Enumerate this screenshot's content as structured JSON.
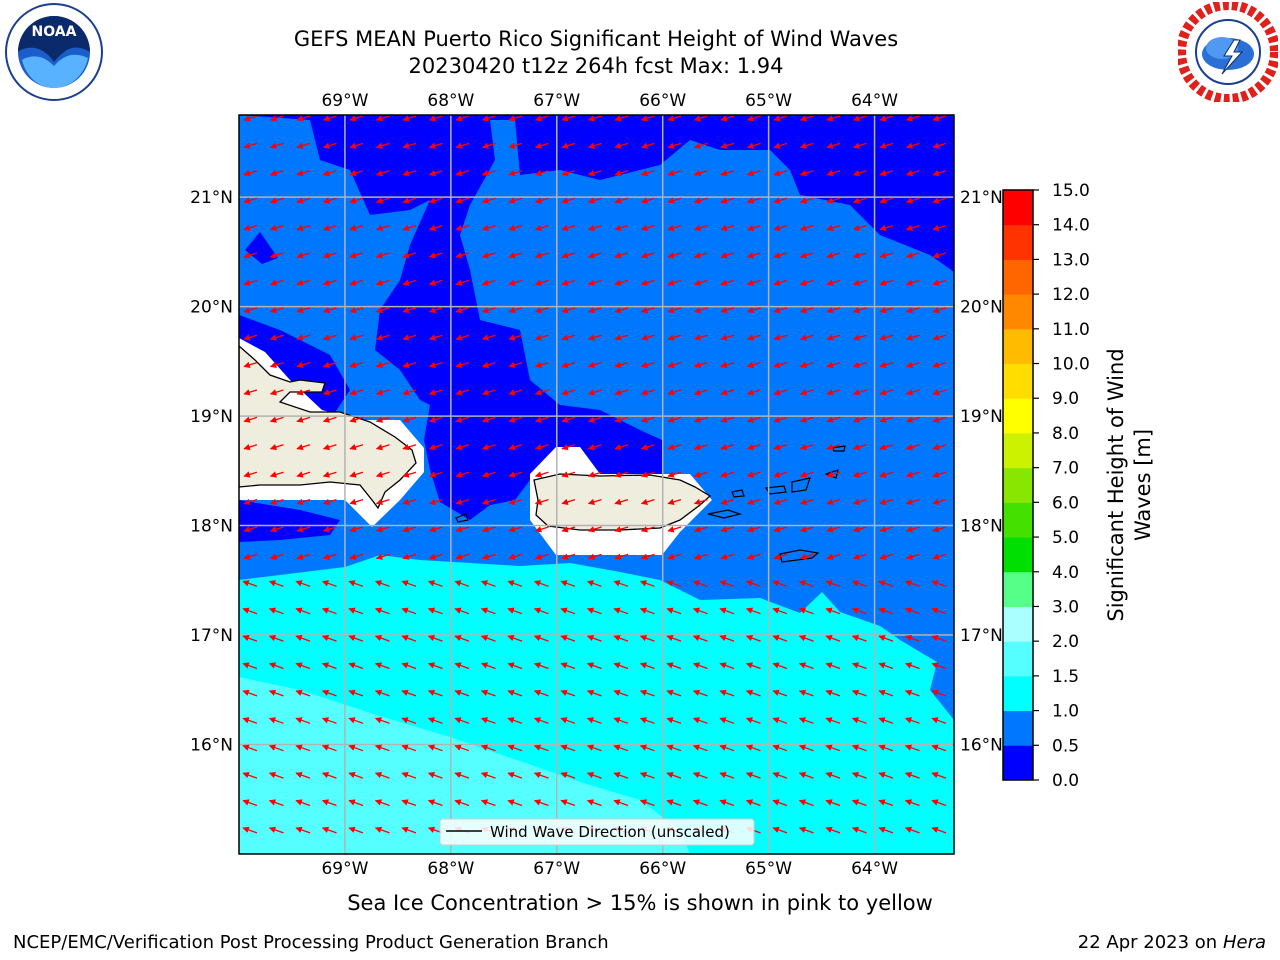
{
  "header": {
    "title_line1": "GEFS MEAN Puerto Rico Significant Height of Wind Waves",
    "title_line2": "20230420 t12z 264h fcst   Max: 1.94"
  },
  "logos": {
    "noaa": {
      "icon": "noaa-logo",
      "text": "NOAA",
      "ring_text": "NATIONAL OCEANIC AND ATMOSPHERIC ADMINISTRATION · U.S. DEPARTMENT OF COMMERCE"
    },
    "nws": {
      "icon": "nws-logo",
      "ring_text": "NATIONAL WEATHER SERVICE"
    }
  },
  "map": {
    "lon_ticks": [
      "69°W",
      "68°W",
      "67°W",
      "66°W",
      "65°W",
      "64°W"
    ],
    "lat_ticks": [
      "21°N",
      "20°N",
      "19°N",
      "18°N",
      "17°N",
      "16°N"
    ],
    "lon_values": [
      -69,
      -68,
      -67,
      -66,
      -65,
      -64
    ],
    "lat_values": [
      21,
      20,
      19,
      18,
      17,
      16
    ],
    "extent": {
      "lon": [
        -70.0,
        -63.25
      ],
      "lat": [
        15.0,
        21.75
      ]
    },
    "legend_label": "Wind Wave Direction (unscaled)",
    "land_color": "#efedde",
    "arrow_color": "#ff0000",
    "gridline_color": "#b3b3b3"
  },
  "colorbar": {
    "label": "Significant Height of Wind Waves [m]",
    "label_line1": "Significant Height of Wind",
    "label_line2": "Waves [m]",
    "tick_labels": [
      "0.0",
      "0.5",
      "1.0",
      "1.5",
      "2.0",
      "3.0",
      "4.0",
      "5.0",
      "6.0",
      "7.0",
      "8.0",
      "9.0",
      "10.0",
      "11.0",
      "12.0",
      "13.0",
      "14.0",
      "15.0"
    ],
    "colors": [
      "#0000ff",
      "#0077ff",
      "#00ffff",
      "#55ffff",
      "#aaffff",
      "#55ff88",
      "#00e000",
      "#44e000",
      "#88e600",
      "#ccf200",
      "#ffff00",
      "#ffdd00",
      "#ffbb00",
      "#ff8800",
      "#ff6600",
      "#ff3300",
      "#ff0000"
    ]
  },
  "caption": "Sea Ice Concentration > 15% is shown in pink to yellow",
  "footer": {
    "left": "NCEP/EMC/Verification Post Processing Product Generation Branch",
    "right_prefix": "22 Apr 2023 on ",
    "right_host": "Hera"
  }
}
